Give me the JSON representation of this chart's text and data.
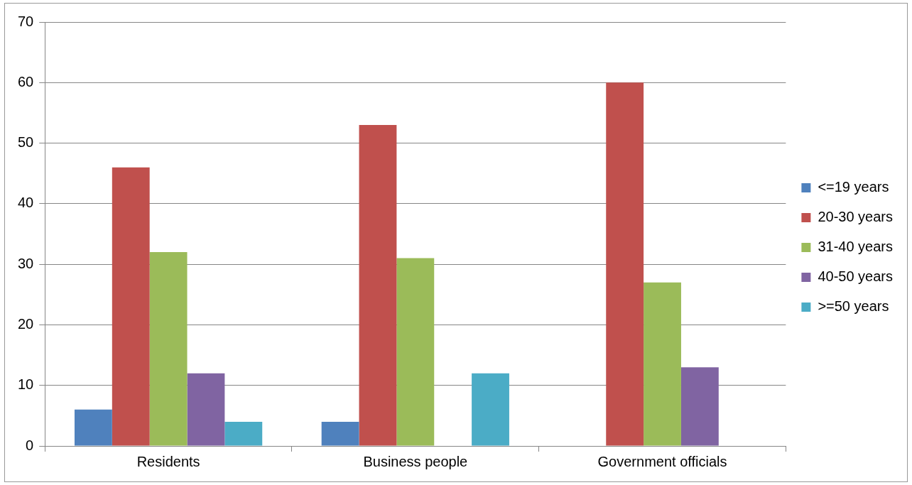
{
  "chart_data": {
    "type": "bar",
    "categories": [
      "Residents",
      "Business people",
      "Government officials"
    ],
    "series": [
      {
        "name": "<=19 years",
        "color": "#4f81bd",
        "values": [
          6,
          4,
          0
        ]
      },
      {
        "name": "20-30 years",
        "color": "#c0504d",
        "values": [
          46,
          53,
          60
        ]
      },
      {
        "name": "31-40 years",
        "color": "#9bbb59",
        "values": [
          32,
          31,
          27
        ]
      },
      {
        "name": "40-50 years",
        "color": "#8064a2",
        "values": [
          12,
          0,
          13
        ]
      },
      {
        "name": ">=50 years",
        "color": "#4bacc6",
        "values": [
          4,
          12,
          0
        ]
      }
    ],
    "ylim": [
      0,
      70
    ],
    "yticks": [
      0,
      10,
      20,
      30,
      40,
      50,
      60,
      70
    ],
    "grid": "y",
    "legend": "right"
  }
}
